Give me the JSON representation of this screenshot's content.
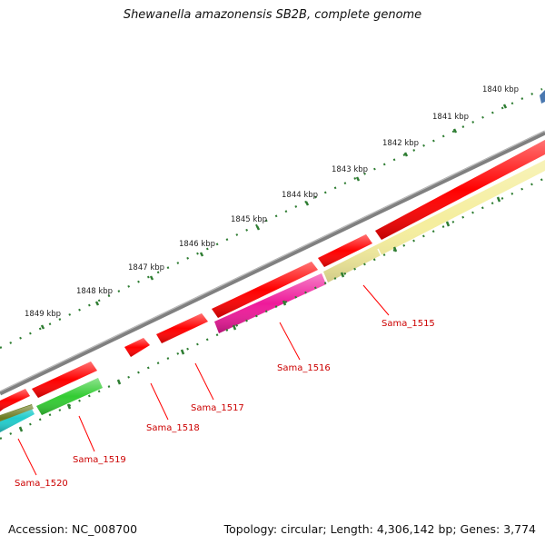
{
  "title": "Shewanella amazonensis SB2B, complete genome",
  "footer": {
    "accession": "Accession: NC_008700",
    "summary": "Topology: circular; Length: 4,306,142 bp; Genes: 3,774"
  },
  "ruler": {
    "ticks": [
      "1840 kbp",
      "1841 kbp",
      "1842 kbp",
      "1843 kbp",
      "1844 kbp",
      "1845 kbp",
      "1846 kbp",
      "1847 kbp",
      "1848 kbp",
      "1849 kbp"
    ]
  },
  "genes": [
    {
      "label": "Sama_1515",
      "color": "#f5ee9e"
    },
    {
      "label": "Sama_1516",
      "color": "#ee1a9a"
    },
    {
      "label": "Sama_1517",
      "color": "#ff0000"
    },
    {
      "label": "Sama_1518",
      "color": "#ff0000"
    },
    {
      "label": "Sama_1519",
      "color": "#33cc33"
    },
    {
      "label": "Sama_1520",
      "color": "#22cccc"
    }
  ],
  "colors": {
    "backbone": "#808080",
    "forward_cds": "#ff0000",
    "label_line": "#ff0000",
    "label_text": "#cc0000",
    "tick": "#2e7d32",
    "olive": "#6b7a1f",
    "blue_feature": "#4a78b0"
  }
}
